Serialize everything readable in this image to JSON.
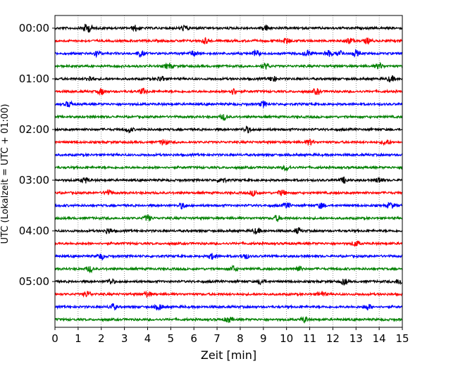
{
  "chart_data": {
    "type": "line",
    "title": "",
    "xlabel": "Zeit  [min]",
    "ylabel": "UTC (Lokalzeit = UTC + 01:00)",
    "xlim": [
      0,
      15
    ],
    "x_ticks": [
      "0",
      "1",
      "2",
      "3",
      "4",
      "5",
      "6",
      "7",
      "8",
      "9",
      "10",
      "11",
      "12",
      "13",
      "14",
      "15"
    ],
    "y_ticks": [
      {
        "label": "00:00",
        "trace": 0
      },
      {
        "label": "01:00",
        "trace": 4
      },
      {
        "label": "02:00",
        "trace": 8
      },
      {
        "label": "03:00",
        "trace": 12
      },
      {
        "label": "04:00",
        "trace": 16
      },
      {
        "label": "05:00",
        "trace": 20
      }
    ],
    "trace_interval_min": 15,
    "trace_colors": [
      "#000000",
      "#ff0000",
      "#0000ff",
      "#008000"
    ],
    "vertical_grid": "dotted",
    "traces": [
      {
        "start": "00:00",
        "color": "#000000",
        "events": [
          1.3,
          1.5,
          3.5,
          5.6,
          9.1
        ]
      },
      {
        "start": "00:15",
        "color": "#ff0000",
        "events": [
          6.5,
          10.0,
          12.7,
          13.5
        ]
      },
      {
        "start": "00:30",
        "color": "#0000ff",
        "events": [
          1.8,
          3.7,
          6.0,
          8.7,
          10.9,
          11.8,
          12.3,
          13.0
        ]
      },
      {
        "start": "00:45",
        "color": "#008000",
        "events": [
          4.9,
          9.1,
          14.0
        ]
      },
      {
        "start": "01:00",
        "color": "#000000",
        "events": [
          1.5,
          4.6,
          9.4,
          14.5
        ]
      },
      {
        "start": "01:15",
        "color": "#ff0000",
        "events": [
          2.0,
          3.8,
          7.7,
          11.3
        ]
      },
      {
        "start": "01:30",
        "color": "#0000ff",
        "events": [
          0.6,
          9.0
        ]
      },
      {
        "start": "01:45",
        "color": "#008000",
        "events": [
          7.3
        ]
      },
      {
        "start": "02:00",
        "color": "#000000",
        "events": [
          3.2,
          8.3
        ]
      },
      {
        "start": "02:15",
        "color": "#ff0000",
        "events": [
          4.7,
          11.0,
          14.3
        ]
      },
      {
        "start": "02:30",
        "color": "#0000ff",
        "events": []
      },
      {
        "start": "02:45",
        "color": "#008000",
        "events": [
          10.0
        ]
      },
      {
        "start": "03:00",
        "color": "#000000",
        "events": [
          1.3,
          7.2,
          12.5,
          14.0
        ]
      },
      {
        "start": "03:15",
        "color": "#ff0000",
        "events": [
          2.3,
          8.6,
          9.8
        ]
      },
      {
        "start": "03:30",
        "color": "#0000ff",
        "events": [
          5.5,
          10.0,
          11.5,
          14.5
        ]
      },
      {
        "start": "03:45",
        "color": "#008000",
        "events": [
          4.0,
          9.6
        ]
      },
      {
        "start": "04:00",
        "color": "#000000",
        "events": [
          2.3,
          8.7,
          10.5
        ]
      },
      {
        "start": "04:15",
        "color": "#ff0000",
        "events": [
          13.0
        ]
      },
      {
        "start": "04:30",
        "color": "#0000ff",
        "events": [
          2.0,
          6.8,
          8.2
        ]
      },
      {
        "start": "04:45",
        "color": "#008000",
        "events": [
          1.5,
          7.7,
          10.5
        ]
      },
      {
        "start": "05:00",
        "color": "#000000",
        "events": [
          2.4,
          8.9,
          12.5,
          14.9
        ]
      },
      {
        "start": "05:15",
        "color": "#ff0000",
        "events": [
          1.4,
          4.0,
          11.5
        ]
      },
      {
        "start": "05:30",
        "color": "#0000ff",
        "events": [
          2.5,
          4.5,
          13.5
        ]
      },
      {
        "start": "05:45",
        "color": "#008000",
        "events": [
          7.5,
          10.8
        ]
      }
    ]
  }
}
